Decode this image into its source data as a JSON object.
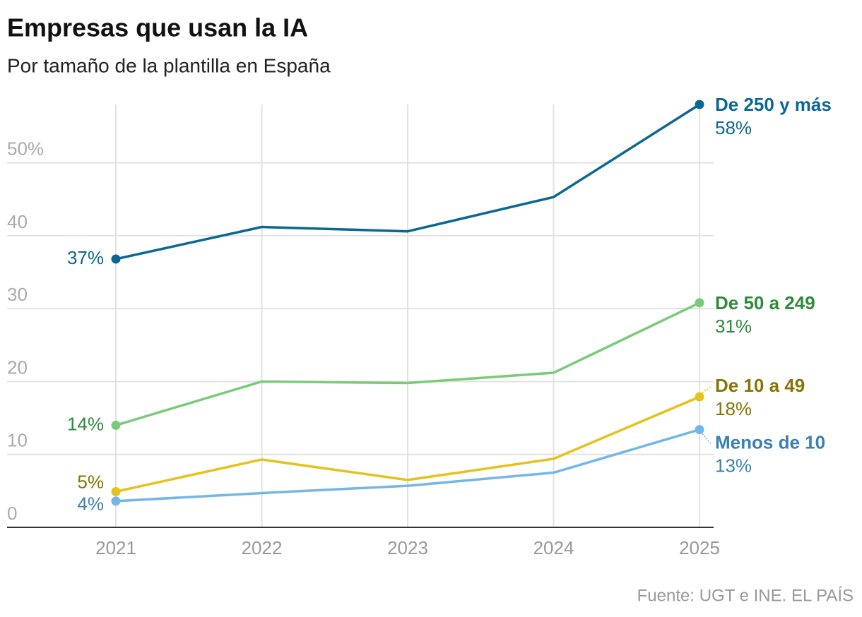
{
  "chart_data": {
    "type": "line",
    "title": "Empresas que usan la IA",
    "subtitle": "Por tamaño de la plantilla en España",
    "x": [
      2021,
      2022,
      2023,
      2024,
      2025
    ],
    "xlim": [
      2021,
      2025
    ],
    "xticks": [
      2021,
      2022,
      2023,
      2024,
      2025
    ],
    "ylim": [
      0,
      58
    ],
    "yticks": [
      0,
      10,
      20,
      30,
      40,
      {
        "value": 50,
        "label": "50%"
      }
    ],
    "grid": true,
    "series": [
      {
        "name": "De 250 y más",
        "color": "#0b6794",
        "label_color": "#0b6794",
        "values": [
          36.8,
          41.2,
          40.6,
          45.3,
          58
        ],
        "value_labels": [
          "37%",
          null,
          null,
          null,
          "58%"
        ]
      },
      {
        "name": "De 50 a 249",
        "color": "#7acb77",
        "label_color": "#2e8b3a",
        "values": [
          14,
          20,
          19.8,
          21.2,
          30.8
        ],
        "value_labels": [
          "14%",
          null,
          null,
          null,
          "31%"
        ]
      },
      {
        "name": "De 10 a 49",
        "color": "#e6c21c",
        "label_color": "#8a7300",
        "values": [
          4.9,
          9.3,
          6.5,
          9.4,
          17.9
        ],
        "value_labels": [
          "5%",
          null,
          null,
          null,
          "18%"
        ]
      },
      {
        "name": "Menos de 10",
        "color": "#74b6e8",
        "label_color": "#3a7fb5",
        "values": [
          3.6,
          4.7,
          5.7,
          7.5,
          13.4
        ],
        "value_labels": [
          "4%",
          null,
          null,
          null,
          "13%"
        ]
      }
    ],
    "source": "Fuente: UGT e INE. EL PAÍS"
  }
}
